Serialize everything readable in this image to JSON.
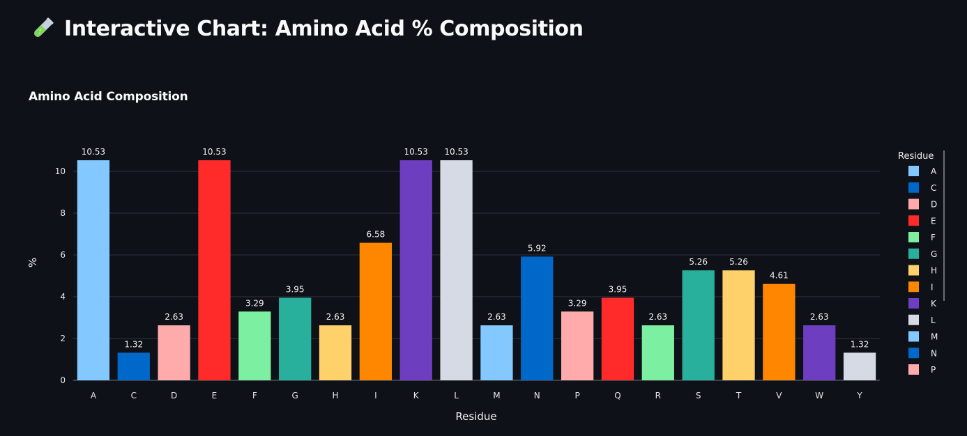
{
  "page": {
    "title": "Interactive Chart: Amino Acid % Composition",
    "icon": "test-tube-icon"
  },
  "chart_data": {
    "type": "bar",
    "title": "Amino Acid Composition",
    "xlabel": "Residue",
    "ylabel": "%",
    "ylim": [
      0,
      11
    ],
    "yticks": [
      0,
      2,
      4,
      6,
      8,
      10
    ],
    "grid": true,
    "legend": {
      "title": "Residue",
      "position": "right",
      "visible_entries": [
        "A",
        "C",
        "D",
        "E",
        "F",
        "G",
        "H",
        "I",
        "K",
        "L",
        "M",
        "N",
        "P"
      ]
    },
    "categories": [
      "A",
      "C",
      "D",
      "E",
      "F",
      "G",
      "H",
      "I",
      "K",
      "L",
      "M",
      "N",
      "P",
      "Q",
      "R",
      "S",
      "T",
      "V",
      "W",
      "Y"
    ],
    "values": [
      10.53,
      1.32,
      2.63,
      10.53,
      3.29,
      3.95,
      2.63,
      6.58,
      10.53,
      10.53,
      2.63,
      5.92,
      3.29,
      3.95,
      2.63,
      5.26,
      5.26,
      4.61,
      2.63,
      1.32
    ],
    "value_labels": [
      "10.53",
      "1.32",
      "2.63",
      "10.53",
      "3.29",
      "3.95",
      "2.63",
      "6.58",
      "10.53",
      "10.53",
      "2.63",
      "5.92",
      "3.29",
      "3.95",
      "2.63",
      "5.26",
      "5.26",
      "4.61",
      "2.63",
      "1.32"
    ],
    "colors": [
      "#83c9ff",
      "#0068c9",
      "#ffabab",
      "#ff2b2b",
      "#7defa1",
      "#29b09d",
      "#ffd16a",
      "#ff8700",
      "#6d3fc0",
      "#d5dae5",
      "#83c9ff",
      "#0068c9",
      "#ffabab",
      "#ff2b2b",
      "#7defa1",
      "#29b09d",
      "#ffd16a",
      "#ff8700",
      "#6d3fc0",
      "#d5dae5"
    ]
  }
}
